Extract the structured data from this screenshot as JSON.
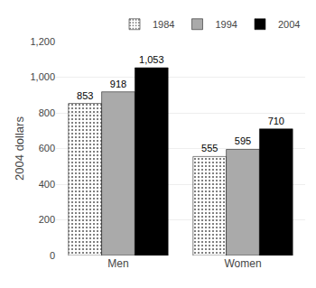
{
  "chart_data": {
    "type": "bar",
    "ylabel": "2004 dollars",
    "categories": [
      "Men",
      "Women"
    ],
    "series": [
      {
        "name": "1984",
        "color": "#e0e0e0",
        "values": [
          853,
          555
        ],
        "value_labels": [
          "853",
          "555"
        ]
      },
      {
        "name": "1994",
        "color": "#aaaaaa",
        "values": [
          918,
          595
        ],
        "value_labels": [
          "918",
          "595"
        ]
      },
      {
        "name": "2004",
        "color": "#000000",
        "values": [
          1053,
          710
        ],
        "value_labels": [
          "1,053",
          "710"
        ]
      }
    ],
    "ylim": [
      0,
      1200
    ],
    "yticks": [
      0,
      200,
      400,
      600,
      800,
      {
        "value": 1000,
        "label": "1,000"
      },
      {
        "value": 1200,
        "label": "1,200"
      }
    ],
    "grid": true,
    "legend": "upper right",
    "data_labels": true
  }
}
